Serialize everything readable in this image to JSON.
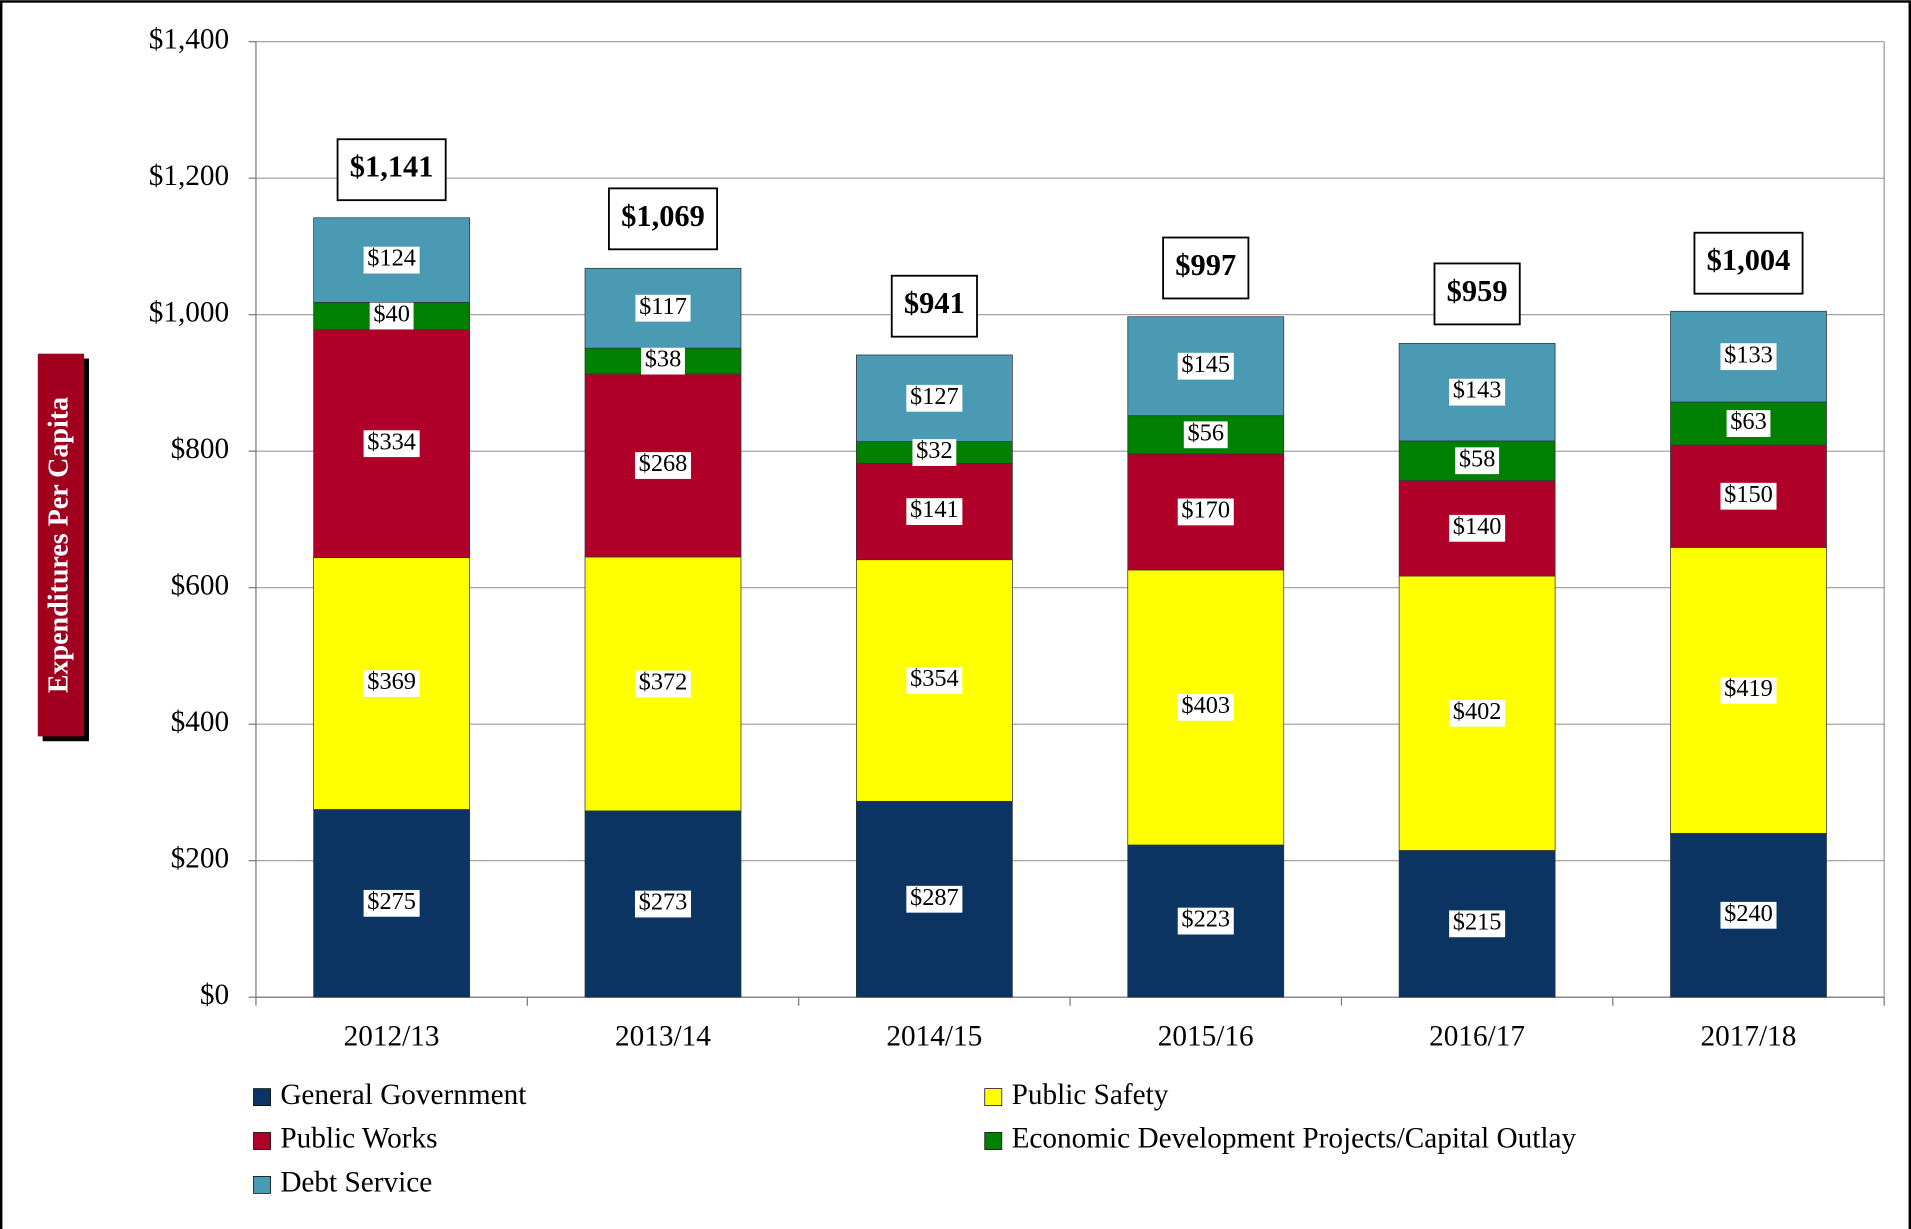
{
  "chart_data": {
    "type": "stacked_bar",
    "y_label": "Expenditures Per Capita",
    "categories": [
      "2012/13",
      "2013/14",
      "2014/15",
      "2015/16",
      "2016/17",
      "2017/18"
    ],
    "series": [
      {
        "name": "General Government",
        "color": "#0b3463",
        "values": [
          275,
          273,
          287,
          223,
          215,
          240
        ],
        "value_labels": [
          "$275",
          "$273",
          "$287",
          "$223",
          "$215",
          "$240"
        ]
      },
      {
        "name": "Public Safety",
        "color": "#ffff00",
        "values": [
          369,
          372,
          354,
          403,
          402,
          419
        ],
        "value_labels": [
          "$369",
          "$372",
          "$354",
          "$403",
          "$402",
          "$419"
        ]
      },
      {
        "name": "Public Works",
        "color": "#b0002a",
        "values": [
          334,
          268,
          141,
          170,
          140,
          150
        ],
        "value_labels": [
          "$334",
          "$268",
          "$141",
          "$170",
          "$140",
          "$150"
        ]
      },
      {
        "name": "Economic Development Projects/Capital Outlay",
        "color": "#008000",
        "values": [
          40,
          38,
          32,
          56,
          58,
          63
        ],
        "value_labels": [
          "$40",
          "$38",
          "$32",
          "$56",
          "$58",
          "$63"
        ]
      },
      {
        "name": "Debt Service",
        "color": "#4a9ab3",
        "values": [
          124,
          117,
          127,
          145,
          143,
          133
        ],
        "value_labels": [
          "$124",
          "$117",
          "$127",
          "$145",
          "$143",
          "$133"
        ]
      }
    ],
    "totals": {
      "values": [
        1141,
        1069,
        941,
        997,
        959,
        1004
      ],
      "value_labels": [
        "$1,141",
        "$1,069",
        "$941",
        "$997",
        "$959",
        "$1,004"
      ]
    },
    "ylim": [
      0,
      1400
    ],
    "yticks": [
      {
        "value": 0,
        "label": "$0"
      },
      {
        "value": 200,
        "label": "$200"
      },
      {
        "value": 400,
        "label": "$400"
      },
      {
        "value": 600,
        "label": "$600"
      },
      {
        "value": 800,
        "label": "$800"
      },
      {
        "value": 1000,
        "label": "$1,000"
      },
      {
        "value": 1200,
        "label": "$1,200"
      },
      {
        "value": 1400,
        "label": "$1,400"
      }
    ],
    "grid": true
  }
}
